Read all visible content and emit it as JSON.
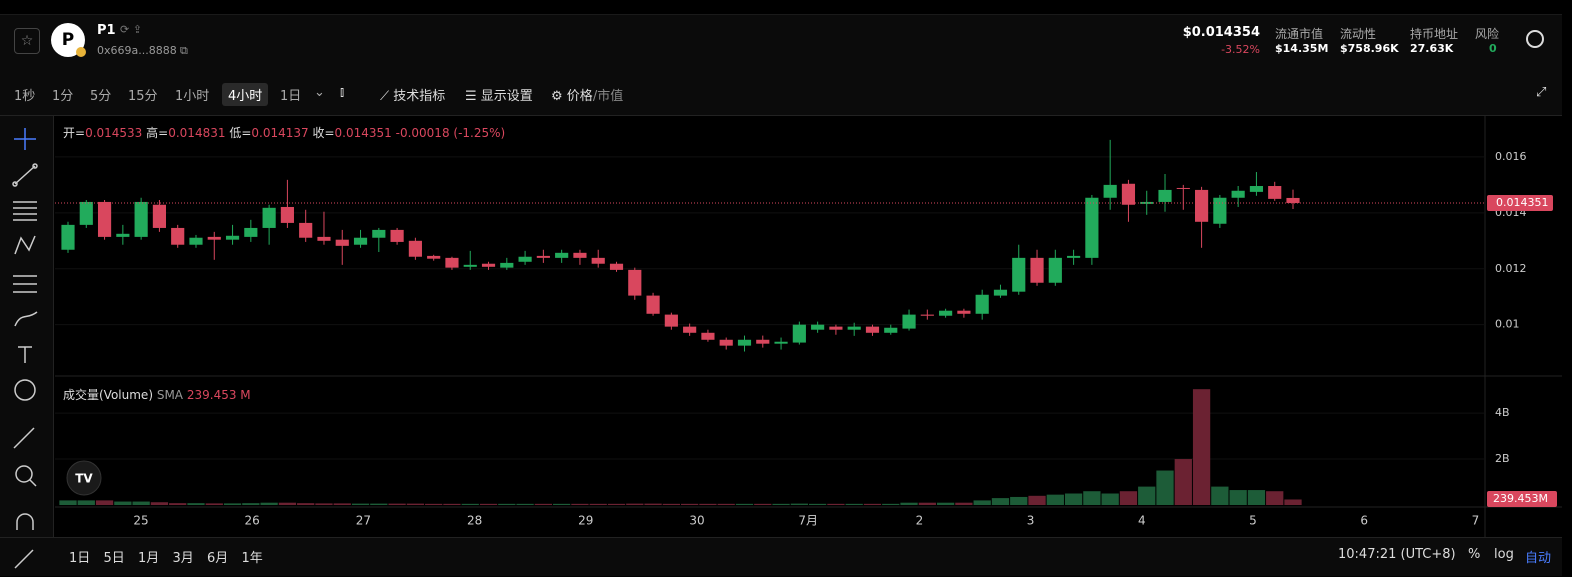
{
  "header": {
    "symbol": "P1",
    "logo_letter": "P",
    "address": "0x669a...8888",
    "price": "$0.014354",
    "change": "-3.52%",
    "stats": [
      {
        "label": "流通市值",
        "value": "$14.35M"
      },
      {
        "label": "流动性",
        "value": "$758.96K"
      },
      {
        "label": "持币地址",
        "value": "27.63K"
      },
      {
        "label": "风险",
        "value": "0"
      }
    ]
  },
  "toolbar": {
    "intervals": [
      "1秒",
      "1分",
      "5分",
      "15分",
      "1小时",
      "4小时",
      "1日"
    ],
    "selected_interval": "4小时",
    "indicators": "技术指标",
    "display_settings": "显示设置",
    "price": "价格",
    "market_cap": "/市值"
  },
  "chart_data": {
    "type": "candlestick",
    "ohlc_labels": {
      "open": "开=",
      "high": "高=",
      "low": "低=",
      "close": "收="
    },
    "ohlc_change": "-0.00018 (-1.25%)",
    "up_color": "#22ab5c",
    "down_color": "#d9475e",
    "open": [
      0.01268,
      0.01357,
      0.01439,
      0.01314,
      0.01314,
      0.01429,
      0.01346,
      0.01286,
      0.01314,
      0.01304,
      0.01314,
      0.01346,
      0.01421,
      0.01364,
      0.01314,
      0.01304,
      0.01286,
      0.01311,
      0.01339,
      0.013,
      0.01246,
      0.01239,
      0.01207,
      0.01218,
      0.01204,
      0.01225,
      0.01246,
      0.01239,
      0.01257,
      0.01239,
      0.01218,
      0.01196,
      0.01104,
      0.01036,
      0.00993,
      0.00971,
      0.00946,
      0.00925,
      0.00946,
      0.00932,
      0.00936,
      0.00982,
      0.00993,
      0.00982,
      0.00993,
      0.00971,
      0.00986,
      0.01036,
      0.01032,
      0.0105,
      0.01039,
      0.01104,
      0.01118,
      0.01239,
      0.0115,
      0.01239,
      0.01239,
      0.01454,
      0.01504,
      0.01432,
      0.01439,
      0.01489,
      0.01482,
      0.01361,
      0.01454,
      0.01475,
      0.01496,
      0.014533
    ],
    "high": [
      0.01368,
      0.01446,
      0.01446,
      0.01357,
      0.01454,
      0.01446,
      0.01357,
      0.01321,
      0.01332,
      0.01357,
      0.01375,
      0.01429,
      0.01518,
      0.01411,
      0.01404,
      0.01339,
      0.01339,
      0.01346,
      0.01346,
      0.01311,
      0.0125,
      0.01243,
      0.01264,
      0.01225,
      0.01239,
      0.01264,
      0.01268,
      0.01268,
      0.01268,
      0.01268,
      0.01225,
      0.01204,
      0.01114,
      0.01043,
      0.01004,
      0.00982,
      0.00954,
      0.00961,
      0.00961,
      0.00954,
      0.01011,
      0.01011,
      0.01,
      0.01007,
      0.01,
      0.01,
      0.01054,
      0.01054,
      0.01057,
      0.01057,
      0.01125,
      0.01143,
      0.01286,
      0.01268,
      0.01268,
      0.01268,
      0.01464,
      0.01661,
      0.01518,
      0.01479,
      0.01539,
      0.015,
      0.01493,
      0.01464,
      0.01496,
      0.01546,
      0.01511,
      0.014831
    ],
    "low": [
      0.01257,
      0.01346,
      0.01304,
      0.01286,
      0.01304,
      0.01332,
      0.01275,
      0.01275,
      0.01232,
      0.01286,
      0.01296,
      0.01286,
      0.01346,
      0.01296,
      0.01286,
      0.01214,
      0.01275,
      0.0126,
      0.01286,
      0.01232,
      0.01229,
      0.01196,
      0.01196,
      0.01196,
      0.01196,
      0.01214,
      0.01221,
      0.01221,
      0.01214,
      0.01204,
      0.01189,
      0.01089,
      0.01032,
      0.00982,
      0.0096,
      0.00939,
      0.00911,
      0.00904,
      0.00918,
      0.00911,
      0.00929,
      0.00971,
      0.00964,
      0.0096,
      0.0096,
      0.00964,
      0.00979,
      0.01018,
      0.01025,
      0.01025,
      0.01018,
      0.01096,
      0.01107,
      0.01139,
      0.01139,
      0.01214,
      0.01214,
      0.01411,
      0.01368,
      0.01393,
      0.01404,
      0.01411,
      0.01275,
      0.01346,
      0.01421,
      0.01461,
      0.01443,
      0.014137
    ],
    "close": [
      0.01357,
      0.01439,
      0.01314,
      0.01325,
      0.01439,
      0.01346,
      0.01286,
      0.01311,
      0.01304,
      0.01318,
      0.01346,
      0.01418,
      0.01364,
      0.01311,
      0.013,
      0.01282,
      0.01311,
      0.01339,
      0.01296,
      0.01243,
      0.01236,
      0.01204,
      0.01214,
      0.01207,
      0.01221,
      0.01243,
      0.01239,
      0.01257,
      0.01239,
      0.01218,
      0.01196,
      0.01104,
      0.01039,
      0.00993,
      0.00971,
      0.00946,
      0.00925,
      0.00946,
      0.00932,
      0.00939,
      0.01,
      0.01,
      0.00982,
      0.00993,
      0.00971,
      0.00989,
      0.01036,
      0.01032,
      0.0105,
      0.01039,
      0.01107,
      0.01125,
      0.01239,
      0.0115,
      0.01239,
      0.01246,
      0.01454,
      0.015,
      0.01429,
      0.01439,
      0.01482,
      0.01486,
      0.01368,
      0.01454,
      0.01479,
      0.01496,
      0.0145,
      0.014351
    ],
    "volume": [
      0.2,
      0.2,
      0.2,
      0.15,
      0.15,
      0.12,
      0.08,
      0.08,
      0.07,
      0.07,
      0.08,
      0.1,
      0.1,
      0.08,
      0.07,
      0.07,
      0.06,
      0.06,
      0.06,
      0.06,
      0.05,
      0.05,
      0.05,
      0.05,
      0.05,
      0.05,
      0.05,
      0.05,
      0.05,
      0.05,
      0.05,
      0.06,
      0.06,
      0.05,
      0.05,
      0.05,
      0.05,
      0.05,
      0.05,
      0.05,
      0.06,
      0.05,
      0.05,
      0.05,
      0.05,
      0.05,
      0.1,
      0.1,
      0.1,
      0.1,
      0.2,
      0.3,
      0.35,
      0.4,
      0.45,
      0.5,
      0.6,
      0.5,
      0.6,
      0.8,
      1.5,
      2.0,
      5.04,
      0.8,
      0.65,
      0.65,
      0.6,
      0.24
    ],
    "ylim": [
      0.0082,
      0.0175
    ],
    "yticks": [
      0.01,
      0.012,
      0.014,
      0.016
    ],
    "volume_title": "成交量(Volume)",
    "volume_sma_label": "SMA",
    "volume_sma_value": "239.453 M",
    "volume_axis_label": "239.453M",
    "y2lim": [
      0,
      5.57
    ],
    "y2ticks": [
      {
        "value": 2,
        "label": "2B"
      },
      {
        "value": 4,
        "label": "4B"
      }
    ],
    "x_labels": [
      "25",
      "26",
      "27",
      "28",
      "29",
      "30",
      "7月",
      "2",
      "3",
      "4",
      "5",
      "6",
      "7"
    ]
  },
  "footer": {
    "ranges": [
      "1日",
      "5日",
      "1月",
      "3月",
      "6月",
      "1年"
    ],
    "time": "10:47:21 (UTC+8)",
    "percent": "%",
    "log": "log",
    "auto": "自动"
  }
}
